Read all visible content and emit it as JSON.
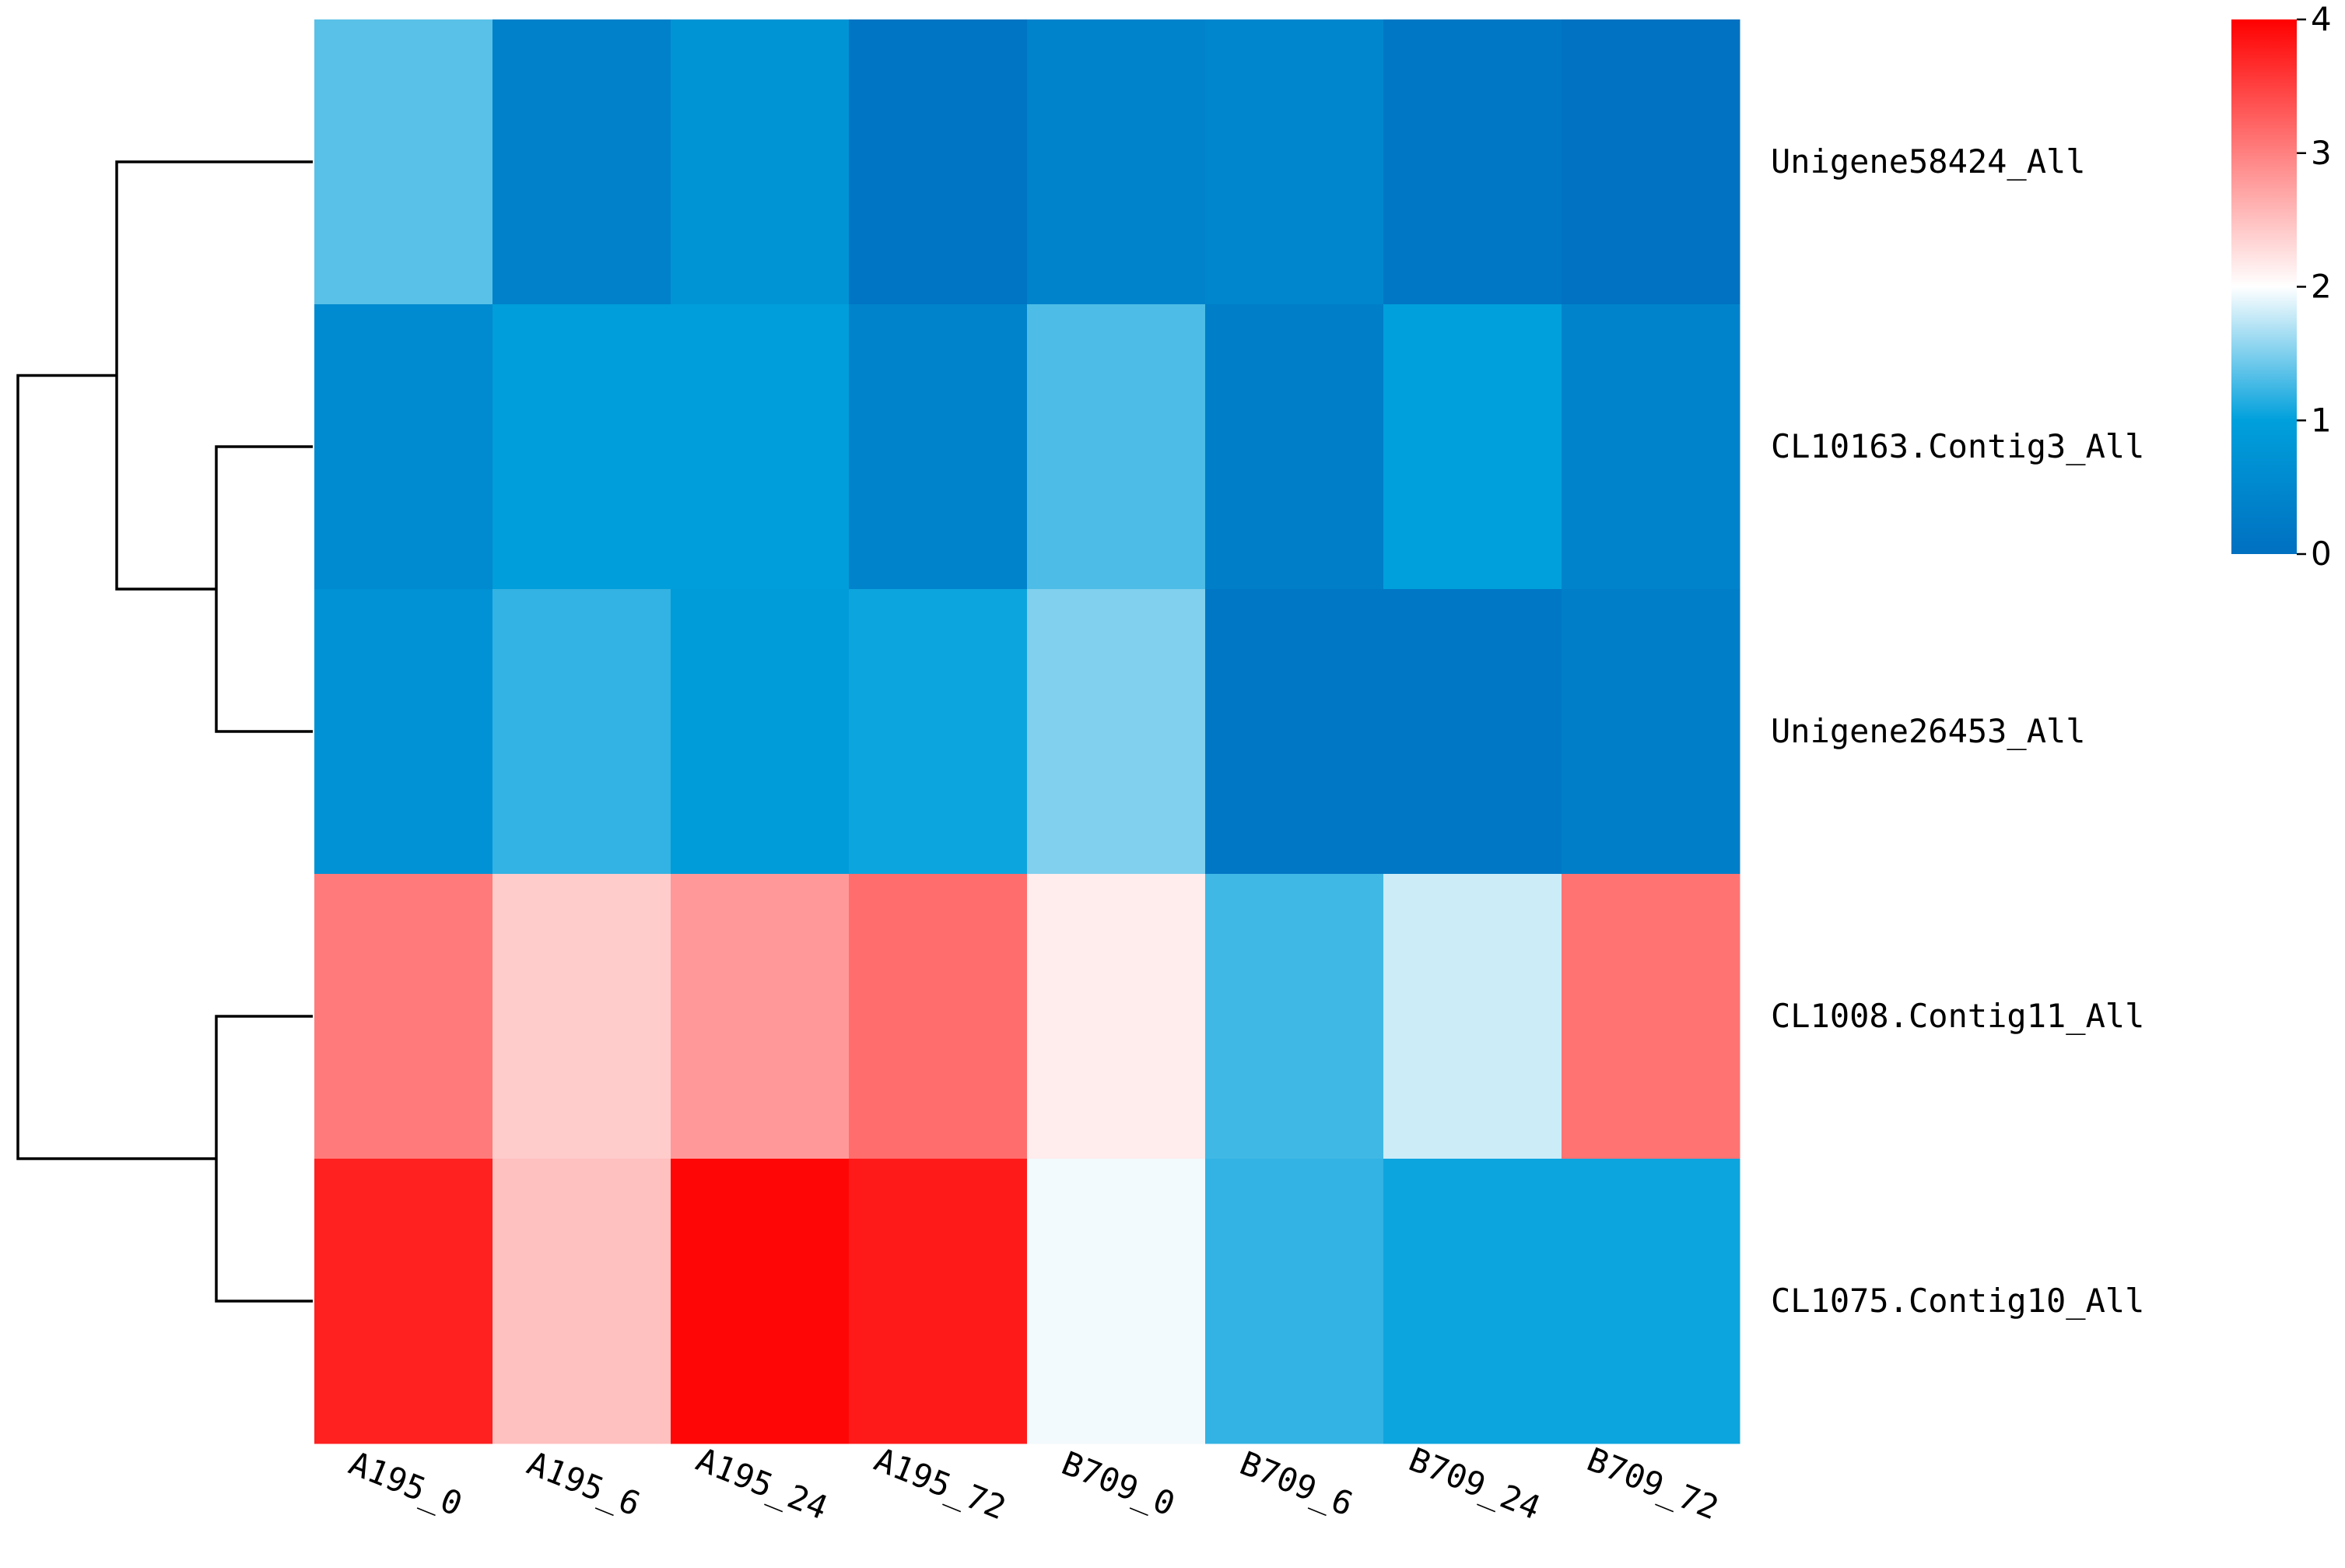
{
  "chart_data": {
    "type": "heatmap",
    "columns": [
      "A195_0",
      "A195_6",
      "A195_24",
      "A195_72",
      "B709_0",
      "B709_6",
      "B709_24",
      "B709_72"
    ],
    "rows": [
      "Unigene58424_All",
      "CL10163.Contig3_All",
      "Unigene26453_All",
      "CL1008.Contig11_All",
      "CL1075.Contig10_All"
    ],
    "values": [
      [
        1.35,
        0.35,
        0.75,
        0.1,
        0.4,
        0.45,
        0.15,
        0.05
      ],
      [
        0.55,
        0.95,
        0.95,
        0.4,
        1.3,
        0.3,
        1.0,
        0.4
      ],
      [
        0.7,
        1.2,
        0.9,
        1.05,
        1.5,
        0.15,
        0.15,
        0.3
      ],
      [
        3.05,
        2.4,
        2.8,
        3.15,
        2.15,
        1.25,
        1.8,
        3.1
      ],
      [
        3.75,
        2.5,
        3.95,
        3.8,
        1.95,
        1.2,
        1.05,
        1.05
      ]
    ],
    "colorbar": {
      "min": 0,
      "max": 4,
      "ticks": [
        "0",
        "1",
        "2",
        "3",
        "4"
      ],
      "low_color": "#0070c0",
      "mid_color": "#ffffff",
      "high_color": "#ff0000"
    },
    "row_dendrogram": [
      {
        "a": 3,
        "b": 4,
        "h": 1
      },
      {
        "a": 1,
        "b": 2,
        "h": 1
      },
      {
        "a": 0,
        "b": 6,
        "h": 2
      },
      {
        "a": 5,
        "b": 7,
        "h": 3
      }
    ]
  }
}
